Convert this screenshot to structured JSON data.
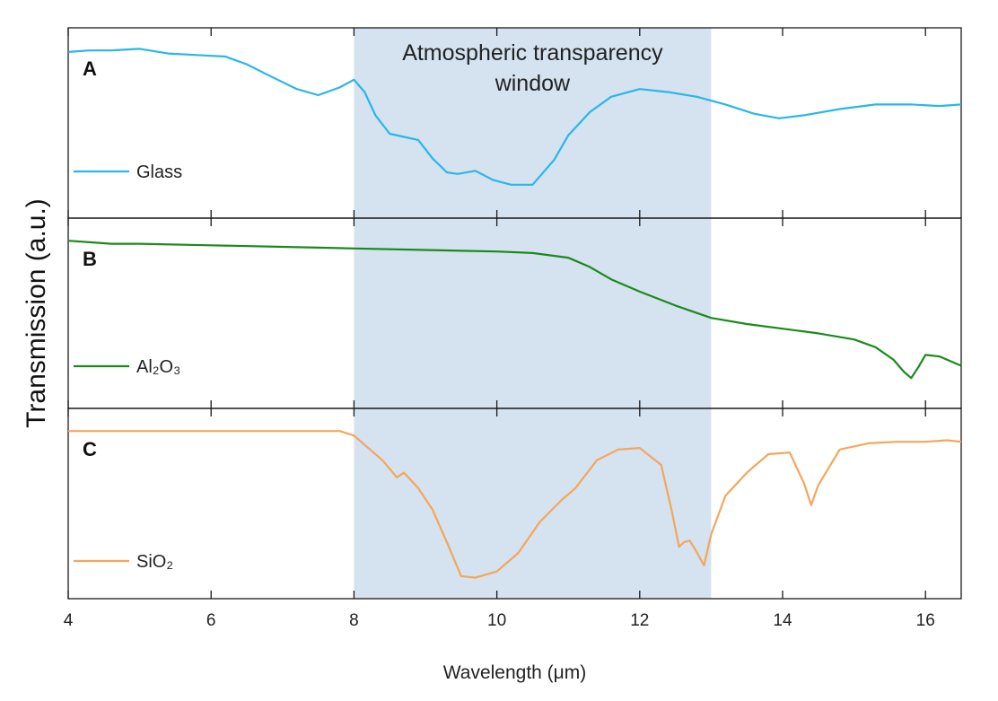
{
  "chart_data": {
    "type": "line",
    "xlabel": "Wavelength (μm)",
    "ylabel": "Transmission (a.u.)",
    "xlim": [
      4,
      16.5
    ],
    "x_ticks": [
      4,
      6,
      8,
      10,
      12,
      14,
      16
    ],
    "grid": false,
    "shaded_region": {
      "x_start": 8,
      "x_end": 13,
      "label_line1": "Atmospheric transparency",
      "label_line2": "window",
      "color": "#d5e2ef"
    },
    "panels": [
      {
        "letter": "A",
        "series": [
          {
            "name": "Glass",
            "color": "#29b6e8",
            "ylim": [
              0,
              1
            ],
            "x": [
              4.0,
              4.3,
              4.6,
              5.0,
              5.4,
              5.8,
              6.2,
              6.5,
              6.8,
              7.2,
              7.5,
              7.8,
              8.0,
              8.15,
              8.3,
              8.5,
              8.7,
              8.9,
              9.1,
              9.3,
              9.45,
              9.7,
              9.95,
              10.2,
              10.5,
              10.8,
              11.0,
              11.3,
              11.6,
              12.0,
              12.4,
              12.8,
              13.2,
              13.6,
              13.95,
              14.3,
              14.8,
              15.3,
              15.8,
              16.2,
              16.5
            ],
            "y": [
              0.96,
              0.97,
              0.97,
              0.98,
              0.95,
              0.94,
              0.93,
              0.88,
              0.81,
              0.72,
              0.68,
              0.73,
              0.78,
              0.7,
              0.55,
              0.43,
              0.41,
              0.39,
              0.27,
              0.18,
              0.17,
              0.19,
              0.13,
              0.1,
              0.1,
              0.26,
              0.42,
              0.57,
              0.67,
              0.72,
              0.7,
              0.67,
              0.62,
              0.56,
              0.53,
              0.55,
              0.59,
              0.62,
              0.62,
              0.61,
              0.62
            ]
          }
        ]
      },
      {
        "letter": "B",
        "series": [
          {
            "name": "Al₂O₃",
            "color": "#1a8a1a",
            "ylim": [
              0,
              1
            ],
            "x": [
              4.0,
              4.3,
              4.6,
              5.0,
              6.0,
              7.0,
              8.0,
              9.0,
              10.0,
              10.5,
              11.0,
              11.3,
              11.6,
              12.0,
              12.5,
              13.0,
              13.5,
              14.0,
              14.5,
              15.0,
              15.3,
              15.55,
              15.7,
              15.8,
              15.9,
              16.0,
              16.2,
              16.5
            ],
            "y": [
              0.97,
              0.96,
              0.95,
              0.95,
              0.94,
              0.93,
              0.92,
              0.91,
              0.9,
              0.89,
              0.86,
              0.8,
              0.72,
              0.64,
              0.55,
              0.47,
              0.43,
              0.4,
              0.37,
              0.33,
              0.28,
              0.2,
              0.12,
              0.08,
              0.15,
              0.23,
              0.22,
              0.16
            ]
          }
        ]
      },
      {
        "letter": "C",
        "series": [
          {
            "name": "SiO₂",
            "color": "#f4a65b",
            "ylim": [
              0,
              1
            ],
            "x": [
              4.0,
              5.0,
              6.0,
              7.0,
              7.8,
              8.0,
              8.2,
              8.4,
              8.6,
              8.7,
              8.9,
              9.1,
              9.3,
              9.5,
              9.7,
              10.0,
              10.3,
              10.6,
              10.9,
              11.1,
              11.4,
              11.7,
              12.0,
              12.3,
              12.45,
              12.55,
              12.62,
              12.7,
              12.78,
              12.9,
              13.0,
              13.2,
              13.5,
              13.8,
              14.1,
              14.3,
              14.4,
              14.5,
              14.8,
              15.2,
              15.6,
              16.0,
              16.3,
              16.5
            ],
            "y": [
              0.97,
              0.97,
              0.97,
              0.97,
              0.97,
              0.94,
              0.86,
              0.78,
              0.67,
              0.7,
              0.6,
              0.46,
              0.25,
              0.03,
              0.02,
              0.06,
              0.18,
              0.38,
              0.52,
              0.6,
              0.78,
              0.85,
              0.86,
              0.75,
              0.45,
              0.22,
              0.25,
              0.26,
              0.2,
              0.1,
              0.3,
              0.55,
              0.7,
              0.82,
              0.83,
              0.63,
              0.49,
              0.62,
              0.85,
              0.89,
              0.9,
              0.9,
              0.91,
              0.9
            ]
          }
        ]
      }
    ]
  }
}
